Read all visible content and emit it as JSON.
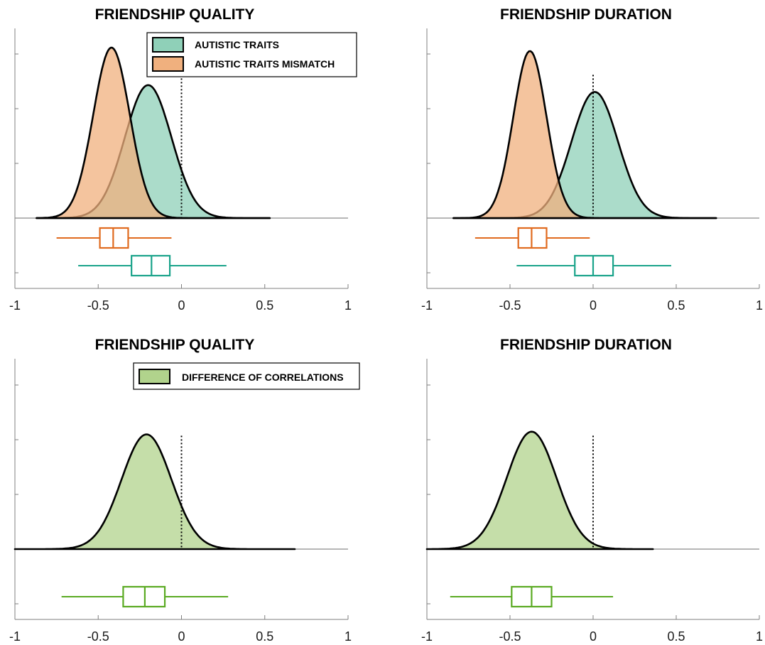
{
  "chart_data": [
    {
      "type": "area",
      "title": "FRIENDSHIP QUALITY",
      "xlim": [
        -1,
        1
      ],
      "xticks": [
        "-1",
        "-0.5",
        "0",
        "0.5",
        "1"
      ],
      "reference_line_x": 0,
      "legend": {
        "position": "top-right"
      },
      "series": [
        {
          "name": "AUTISTIC TRAITS",
          "color": "#8fd0b8",
          "box_color": "#1aa38a",
          "density": {
            "mean": -0.2,
            "sd": 0.14,
            "range": [
              -0.87,
              0.53
            ],
            "peak": 0.78
          },
          "box": {
            "whisker_low": -0.62,
            "q1": -0.3,
            "median": -0.18,
            "q3": -0.07,
            "whisker_high": 0.27
          }
        },
        {
          "name": "AUTISTIC TRAITS MISMATCH",
          "color": "#f0b07e",
          "box_color": "#e06a1e",
          "density": {
            "mean": -0.42,
            "sd": 0.11,
            "range": [
              -0.87,
              0.53
            ],
            "peak": 1.0
          },
          "box": {
            "whisker_low": -0.75,
            "q1": -0.49,
            "median": -0.41,
            "q3": -0.32,
            "whisker_high": -0.06
          }
        }
      ]
    },
    {
      "type": "area",
      "title": "FRIENDSHIP DURATION",
      "xlim": [
        -1,
        1
      ],
      "xticks": [
        "-1",
        "-0.5",
        "0",
        "0.5",
        "1"
      ],
      "reference_line_x": 0,
      "series": [
        {
          "name": "AUTISTIC TRAITS",
          "color": "#8fd0b8",
          "box_color": "#1aa38a",
          "density": {
            "mean": 0.01,
            "sd": 0.14,
            "range": [
              -0.84,
              0.74
            ],
            "peak": 0.74
          },
          "box": {
            "whisker_low": -0.46,
            "q1": -0.11,
            "median": 0.0,
            "q3": 0.12,
            "whisker_high": 0.47
          }
        },
        {
          "name": "AUTISTIC TRAITS MISMATCH",
          "color": "#f0b07e",
          "box_color": "#e06a1e",
          "density": {
            "mean": -0.38,
            "sd": 0.1,
            "range": [
              -0.84,
              0.74
            ],
            "peak": 0.98
          },
          "box": {
            "whisker_low": -0.71,
            "q1": -0.45,
            "median": -0.37,
            "q3": -0.28,
            "whisker_high": -0.02
          }
        }
      ]
    },
    {
      "type": "area",
      "title": "FRIENDSHIP QUALITY",
      "xlim": [
        -1,
        1
      ],
      "xticks": [
        "-1",
        "-0.5",
        "0",
        "0.5",
        "1"
      ],
      "reference_line_x": 0,
      "legend": {
        "position": "top-right"
      },
      "series": [
        {
          "name": "DIFFERENCE OF CORRELATIONS",
          "color": "#b1d38c",
          "box_color": "#5aaa22",
          "density": {
            "mean": -0.21,
            "sd": 0.15,
            "range": [
              -1.0,
              0.68
            ],
            "peak": 0.85
          },
          "box": {
            "whisker_low": -0.72,
            "q1": -0.35,
            "median": -0.22,
            "q3": -0.1,
            "whisker_high": 0.28
          }
        }
      ]
    },
    {
      "type": "area",
      "title": "FRIENDSHIP DURATION",
      "xlim": [
        -1,
        1
      ],
      "xticks": [
        "-1",
        "-0.5",
        "0",
        "0.5",
        "1"
      ],
      "reference_line_x": 0,
      "series": [
        {
          "name": "DIFFERENCE OF CORRELATIONS",
          "color": "#b1d38c",
          "box_color": "#5aaa22",
          "density": {
            "mean": -0.37,
            "sd": 0.15,
            "range": [
              -1.0,
              0.36
            ],
            "peak": 0.87
          },
          "box": {
            "whisker_low": -0.86,
            "q1": -0.49,
            "median": -0.37,
            "q3": -0.25,
            "whisker_high": 0.12
          }
        }
      ]
    }
  ]
}
